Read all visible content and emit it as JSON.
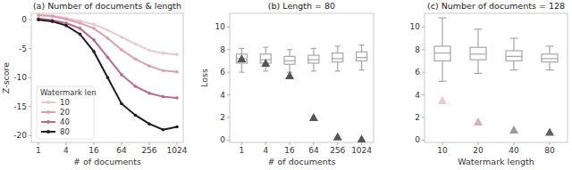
{
  "chart_data": [
    {
      "type": "line",
      "title": "(a) Number of documents & length",
      "x_label": "# of documents",
      "y_label": "Z-score",
      "log": "x",
      "x": [
        1,
        2,
        4,
        8,
        16,
        32,
        64,
        128,
        256,
        512,
        1024
      ],
      "xlim": [
        0.7,
        1400
      ],
      "xticks": [
        1,
        4,
        16,
        64,
        256,
        1024
      ],
      "ylim": [
        -21.2,
        1.1
      ],
      "yticks": [
        0,
        -5,
        -10,
        -15,
        -20
      ],
      "legend": "lower left",
      "legend_title": "Watermark len",
      "series": [
        {
          "name": "10",
          "color": "#ebc7cf",
          "marker": "circle",
          "values": [
            0.8,
            0.7,
            0.3,
            -0.2,
            -0.8,
            -1.8,
            -3.0,
            -4.2,
            -5.3,
            -5.8,
            -6.0
          ]
        },
        {
          "name": "20",
          "color": "#dba0b0",
          "marker": "circle",
          "values": [
            0.8,
            0.6,
            0.1,
            -0.6,
            -1.5,
            -3.2,
            -5.2,
            -6.8,
            -8.0,
            -8.8,
            -9.0
          ]
        },
        {
          "name": "40",
          "color": "#b96a85",
          "marker": "circle",
          "values": [
            0.2,
            -0.1,
            -0.6,
            -1.5,
            -3.5,
            -6.5,
            -9.5,
            -11.5,
            -12.7,
            -13.3,
            -13.5
          ]
        },
        {
          "name": "80",
          "color": "#241a26",
          "marker": "circle",
          "values": [
            0.0,
            -0.3,
            -1.0,
            -2.5,
            -5.5,
            -10.0,
            -14.5,
            -16.5,
            -18.0,
            -19.0,
            -18.5
          ]
        }
      ]
    },
    {
      "type": "box",
      "title": "(b) Length = 80",
      "x_label": "# of documents",
      "y_label": "Loss",
      "categories": [
        1,
        4,
        16,
        64,
        256,
        1024
      ],
      "ylim": [
        -0.2,
        11.2
      ],
      "yticks": [
        0,
        2,
        4,
        6,
        8,
        10
      ],
      "series": [
        {
          "type": "box",
          "color": "#a6a6a6",
          "min": [
            6.0,
            6.1,
            6.0,
            6.1,
            6.1,
            6.2
          ],
          "q1": [
            6.8,
            6.8,
            6.7,
            6.8,
            6.9,
            7.0
          ],
          "median": [
            7.2,
            7.1,
            7.0,
            7.1,
            7.2,
            7.3
          ],
          "q3": [
            7.6,
            7.6,
            7.4,
            7.5,
            7.7,
            7.8
          ],
          "max": [
            8.1,
            8.2,
            8.0,
            8.1,
            8.3,
            8.4
          ]
        },
        {
          "type": "scatter",
          "marker": "triangle",
          "color": "#555555",
          "values": [
            7.2,
            6.8,
            5.7,
            2.0,
            0.3,
            0.1
          ]
        }
      ]
    },
    {
      "type": "box",
      "title": "(c) Number of documents = 128",
      "x_label": "Watermark length",
      "categories": [
        10,
        20,
        40,
        80
      ],
      "ylim": [
        -0.2,
        11.2
      ],
      "yticks": [
        0,
        2,
        4,
        6,
        8,
        10
      ],
      "series": [
        {
          "type": "box",
          "color": "#a6a6a6",
          "min": [
            5.2,
            5.9,
            6.2,
            6.2
          ],
          "q1": [
            7.0,
            7.1,
            7.0,
            6.9
          ],
          "median": [
            7.7,
            7.6,
            7.4,
            7.2
          ],
          "q3": [
            8.3,
            8.2,
            7.9,
            7.6
          ],
          "max": [
            10.8,
            9.8,
            9.0,
            8.3
          ]
        },
        {
          "type": "scatter",
          "marker": "triangle",
          "colors": [
            "#ebc7cf",
            "#d4b0b8",
            "#9a9a9a",
            "#606060"
          ],
          "values": [
            3.5,
            1.6,
            0.9,
            0.7
          ]
        }
      ]
    }
  ]
}
